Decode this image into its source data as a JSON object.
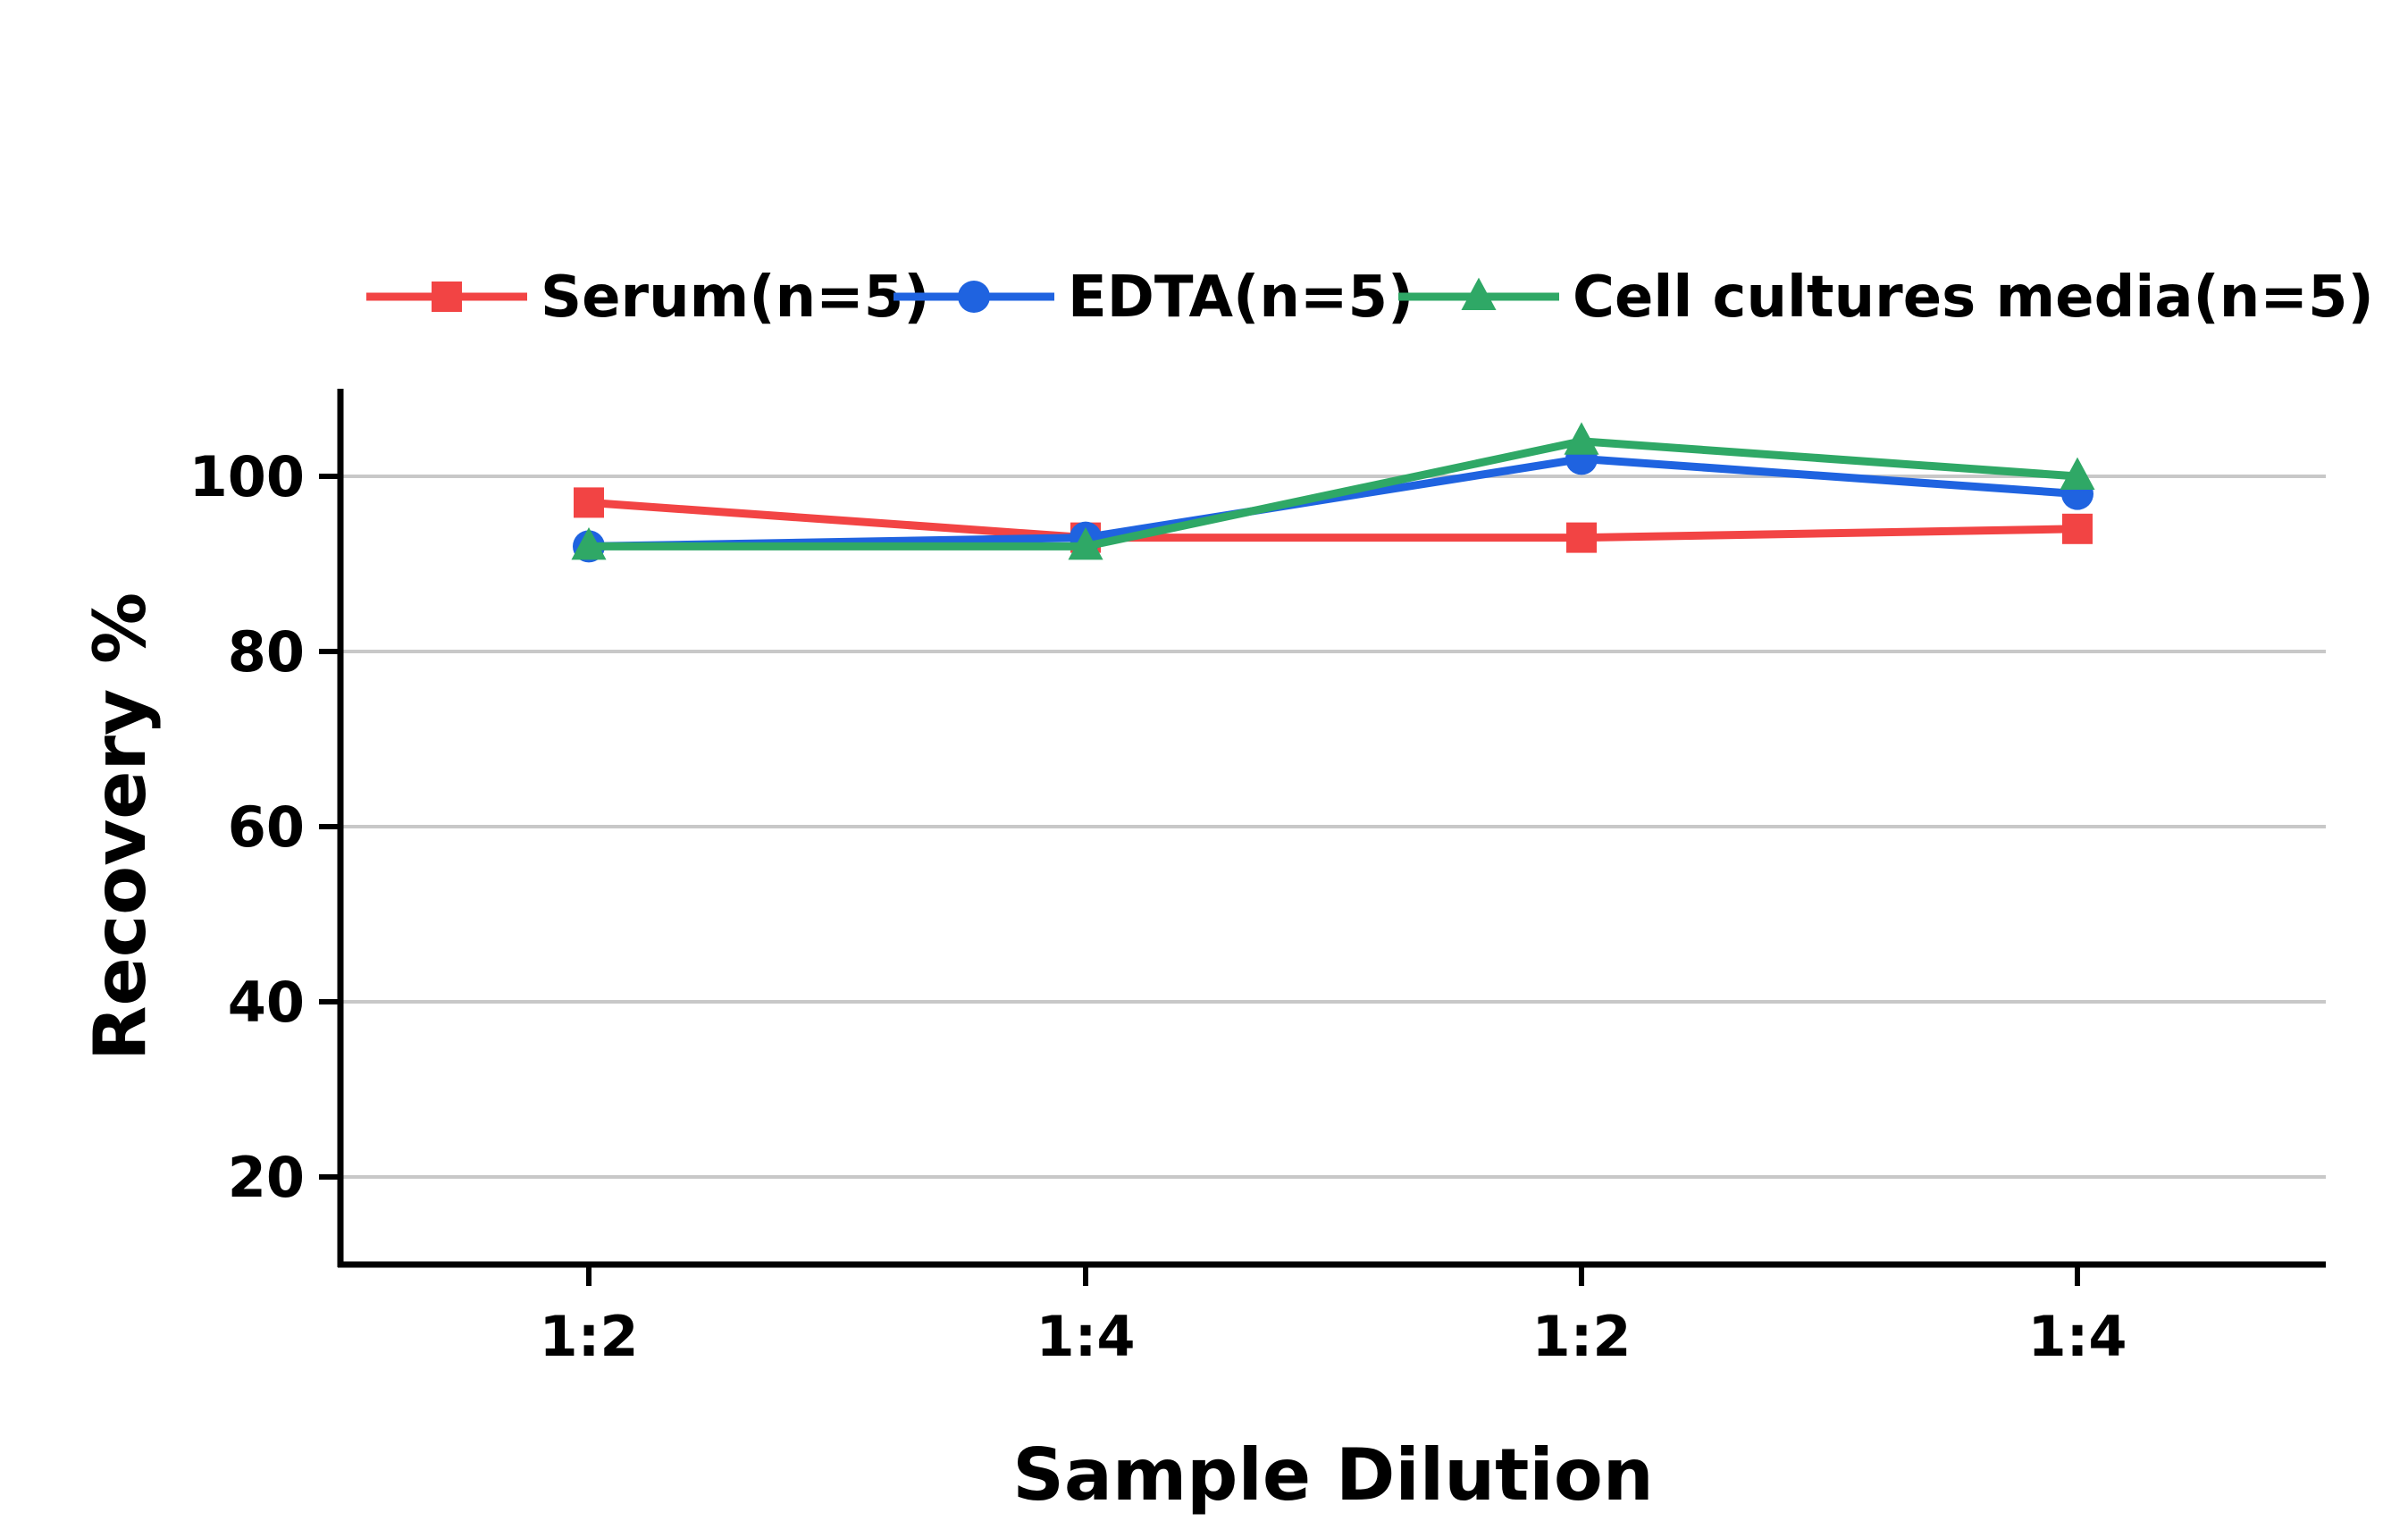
{
  "chart_data": {
    "type": "line",
    "title": "",
    "xlabel": "Sample Dilution",
    "ylabel": "Recovery %",
    "categories": [
      "1:2",
      "1:4",
      "1:2",
      "1:4"
    ],
    "ylim": [
      10,
      110
    ],
    "yticks": [
      20,
      40,
      60,
      80,
      100
    ],
    "grid": true,
    "legend_position": "top",
    "series": [
      {
        "name": "Serum(n=5)",
        "color": "#f24444",
        "marker": "square",
        "values": [
          97,
          93,
          93,
          94
        ]
      },
      {
        "name": "EDTA(n=5)",
        "color": "#1f63e0",
        "marker": "circle",
        "values": [
          92,
          93,
          102,
          98
        ]
      },
      {
        "name": "Cell cultures media(n=5)",
        "color": "#2fa866",
        "marker": "triangle",
        "values": [
          92,
          92,
          104,
          100
        ]
      }
    ]
  }
}
